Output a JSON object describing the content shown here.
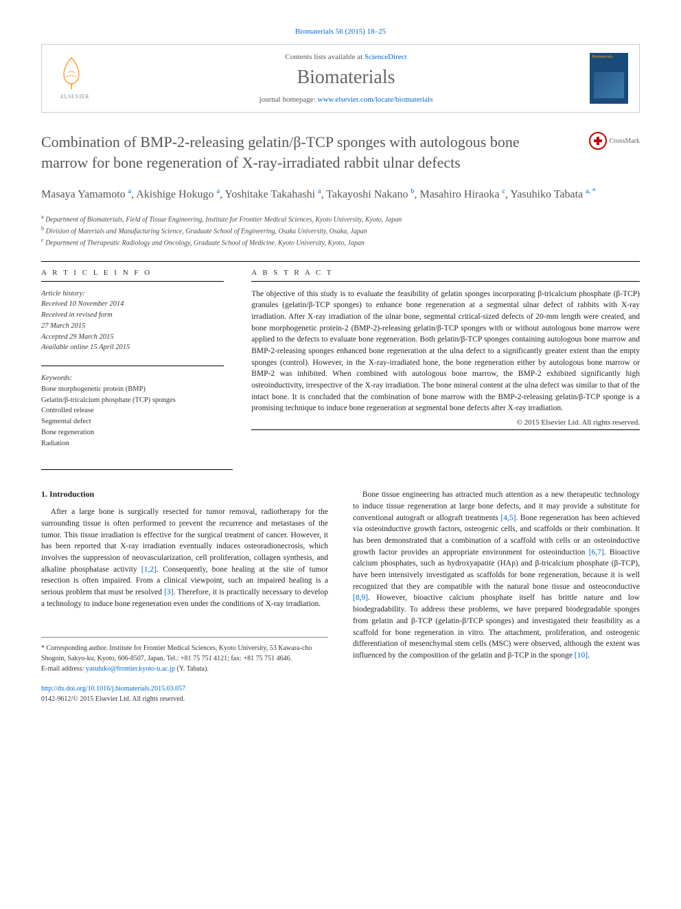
{
  "citation": "Biomaterials 56 (2015) 18–25",
  "header": {
    "contents_prefix": "Contents lists available at ",
    "contents_link": "ScienceDirect",
    "journal": "Biomaterials",
    "homepage_prefix": "journal homepage: ",
    "homepage_link": "www.elsevier.com/locate/biomaterials",
    "publisher_name": "ELSEVIER"
  },
  "crossmark_label": "CrossMark",
  "title": "Combination of BMP-2-releasing gelatin/β-TCP sponges with autologous bone marrow for bone regeneration of X-ray-irradiated rabbit ulnar defects",
  "authors_html": "Masaya Yamamoto <sup>a</sup>, Akishige Hokugo <sup>a</sup>, Yoshitake Takahashi <sup>a</sup>, Takayoshi Nakano <sup>b</sup>, Masahiro Hiraoka <sup>c</sup>, Yasuhiko Tabata <sup>a, *</sup>",
  "affiliations": [
    "a Department of Biomaterials, Field of Tissue Engineering, Institute for Frontier Medical Sciences, Kyoto University, Kyoto, Japan",
    "b Division of Materials and Manufacturing Science, Graduate School of Engineering, Osaka University, Osaka, Japan",
    "c Department of Therapeutic Radiology and Oncology, Graduate School of Medicine, Kyoto University, Kyoto, Japan"
  ],
  "article_info_label": "A R T I C L E   I N F O",
  "abstract_label": "A B S T R A C T",
  "history": {
    "label": "Article history:",
    "received": "Received 10 November 2014",
    "revised1": "Received in revised form",
    "revised2": "27 March 2015",
    "accepted": "Accepted 29 March 2015",
    "online": "Available online 15 April 2015"
  },
  "keywords": {
    "label": "Keywords:",
    "items": [
      "Bone morphogenetic protein (BMP)",
      "Gelatin/β-tricalcium phosphate (TCP) sponges",
      "Controlled release",
      "Segmental defect",
      "Bone regeneration",
      "Radiation"
    ]
  },
  "abstract_text": "The objective of this study is to evaluate the feasibility of gelatin sponges incorporating β-tricalcium phosphate (β-TCP) granules (gelatin/β-TCP sponges) to enhance bone regeneration at a segmental ulnar defect of rabbits with X-ray irradiation. After X-ray irradiation of the ulnar bone, segmental critical-sized defects of 20-mm length were created, and bone morphogenetic protein-2 (BMP-2)-releasing gelatin/β-TCP sponges with or without autologous bone marrow were applied to the defects to evaluate bone regeneration. Both gelatin/β-TCP sponges containing autologous bone marrow and BMP-2-releasing sponges enhanced bone regeneration at the ulna defect to a significantly greater extent than the empty sponges (control). However, in the X-ray-irradiated bone, the bone regeneration either by autologous bone marrow or BMP-2 was inhibited. When combined with autologous bone marrow, the BMP-2 exhibited significantly high osteoinductivity, irrespective of the X-ray irradiation. The bone mineral content at the ulna defect was similar to that of the intact bone. It is concluded that the combination of bone marrow with the BMP-2-releasing gelatin/β-TCP sponge is a promising technique to induce bone regeneration at segmental bone defects after X-ray irradiation.",
  "copyright": "© 2015 Elsevier Ltd. All rights reserved.",
  "intro_heading": "1.  Introduction",
  "intro_col1": "After a large bone is surgically resected for tumor removal, radiotherapy for the surrounding tissue is often performed to prevent the recurrence and metastases of the tumor. This tissue irradiation is effective for the surgical treatment of cancer. However, it has been reported that X-ray irradiation eventually induces osteoradionecrosis, which involves the suppression of neovascularization, cell proliferation, collagen synthesis, and alkaline phosphatase activity [1,2]. Consequently, bone healing at the site of tumor resection is often impaired. From a clinical viewpoint, such an impaired healing is a serious problem that must be resolved [3]. Therefore, it is practically necessary to develop a technology to induce bone regeneration even under the conditions of X-ray irradiation.",
  "intro_col2": "Bone tissue engineering has attracted much attention as a new therapeutic technology to induce tissue regeneration at large bone defects, and it may provide a substitute for conventional autograft or allograft treatments [4,5]. Bone regeneration has been achieved via osteoinductive growth factors, osteogenic cells, and scaffolds or their combination. It has been demonstrated that a combination of a scaffold with cells or an osteoinductive growth factor provides an appropriate environment for osteoinduction [6,7]. Bioactive calcium phosphates, such as hydroxyapatite (HAp) and β-tricalcium phosphate (β-TCP), have been intensively investigated as scaffolds for bone regeneration, because it is well recognized that they are compatible with the natural bone tissue and osteoconductive [8,9]. However, bioactive calcium phosphate itself has brittle nature and low biodegradability. To address these problems, we have prepared biodegradable sponges from gelatin and β-TCP (gelatin-β/TCP sponges) and investigated their feasibility as a scaffold for bone regeneration in vitro. The attachment, proliferation, and osteogenic differentiation of mesenchymal stem cells (MSC) were observed, although the extent was influenced by the composition of the gelatin and β-TCP in the sponge [10].",
  "footer": {
    "corresponding": "* Corresponding author. Institute for Frontier Medical Sciences, Kyoto University, 53 Kawara-cho Shogoin, Sakyo-ku, Kyoto, 606-8507, Japan. Tel.: +81 75 751 4121; fax: +81 75 751 4646.",
    "email_label": "E-mail address: ",
    "email": "yasuhiko@frontier.kyoto-u.ac.jp",
    "email_suffix": " (Y. Tabata).",
    "doi": "http://dx.doi.org/10.1016/j.biomaterials.2015.03.057",
    "issn": "0142-9612/© 2015 Elsevier Ltd. All rights reserved."
  },
  "colors": {
    "link": "#0066cc",
    "text": "#222222",
    "muted": "#555555",
    "crossmark": "#b00000",
    "cover": "#1a4a7a",
    "elsevier_orange": "#ff8c00"
  }
}
